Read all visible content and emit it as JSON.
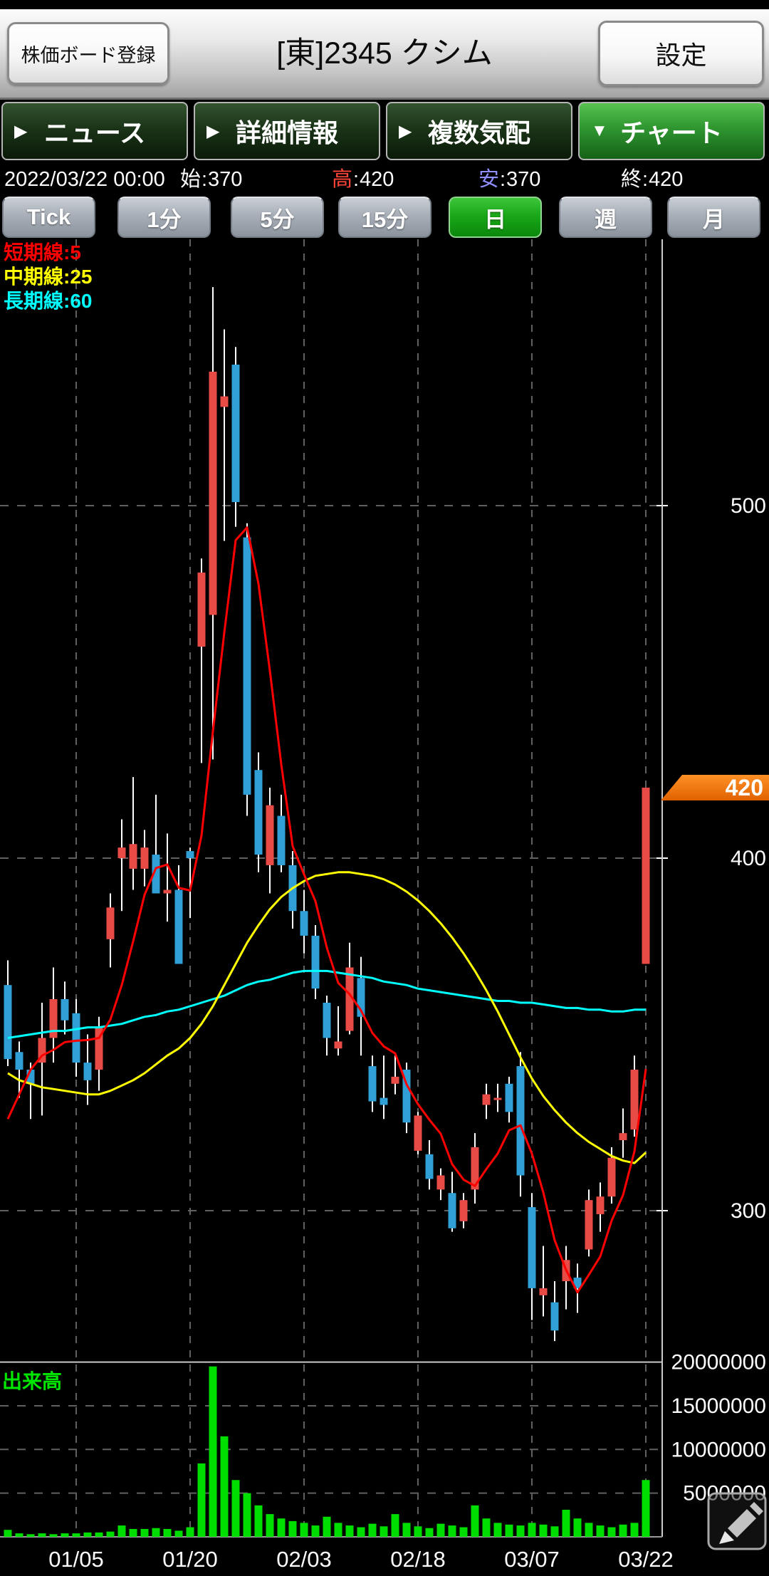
{
  "header": {
    "register_button": "株価ボード登録",
    "title": "[東]2345 クシム",
    "settings_button": "設定"
  },
  "tabs": [
    {
      "label": "ニュース",
      "arrow": "▶",
      "active": false
    },
    {
      "label": "詳細情報",
      "arrow": "▶",
      "active": false
    },
    {
      "label": "複数気配",
      "arrow": "▶",
      "active": false
    },
    {
      "label": "チャート",
      "arrow": "▼",
      "active": true
    }
  ],
  "info_bar": {
    "datetime": "2022/03/22 00:00",
    "open_label": "始",
    "open": "370",
    "high_label": "高",
    "high": "420",
    "low_label": "安",
    "low": "370",
    "close_label": "終",
    "close": "420"
  },
  "timeframes": {
    "options": [
      "Tick",
      "1分",
      "5分",
      "15分",
      "日",
      "週",
      "月"
    ],
    "selected": "日"
  },
  "legend": [
    {
      "label": "短期線:5",
      "color": "#ff0000"
    },
    {
      "label": "中期線:25",
      "color": "#ffff00"
    },
    {
      "label": "長期線:60",
      "color": "#00ffff"
    }
  ],
  "volume_label": "出来高",
  "current_price_tag": {
    "value": "420",
    "color_top": "#ff9126",
    "color_bottom": "#e06200"
  },
  "chart_data": {
    "type": "candlestick",
    "title": "[東]2345 クシム 日足",
    "x_ticks": [
      {
        "label": "01/05",
        "index": 6
      },
      {
        "label": "01/20",
        "index": 16
      },
      {
        "label": "02/03",
        "index": 26
      },
      {
        "label": "02/18",
        "index": 36
      },
      {
        "label": "03/07",
        "index": 46
      },
      {
        "label": "03/22",
        "index": 56
      }
    ],
    "price_axis": [
      500,
      400,
      300
    ],
    "volume_axis": [
      20000000,
      15000000,
      10000000,
      5000000
    ],
    "current_price": 420,
    "last_candle": {
      "open": 370,
      "high": 420,
      "low": 370,
      "close": 420
    },
    "candles": [
      [
        364,
        371,
        341,
        343
      ],
      [
        345,
        348,
        332,
        340
      ],
      [
        340,
        342,
        326,
        336
      ],
      [
        342,
        359,
        327,
        349
      ],
      [
        349,
        369,
        342,
        360
      ],
      [
        360,
        365,
        350,
        354
      ],
      [
        356,
        360,
        338,
        342
      ],
      [
        342,
        350,
        330,
        337
      ],
      [
        340,
        355,
        334,
        352
      ],
      [
        377,
        390,
        369,
        386
      ],
      [
        400,
        411,
        385,
        403
      ],
      [
        397,
        423,
        391,
        404
      ],
      [
        397,
        408,
        392,
        403
      ],
      [
        401,
        418,
        390,
        390
      ],
      [
        390,
        407,
        382,
        391
      ],
      [
        391,
        398,
        370,
        370
      ],
      [
        402,
        403,
        383,
        400
      ],
      [
        460,
        485,
        427,
        481
      ],
      [
        469,
        562,
        428,
        538
      ],
      [
        528,
        550,
        490,
        531
      ],
      [
        540,
        545,
        494,
        501
      ],
      [
        491,
        495,
        412,
        418
      ],
      [
        425,
        430,
        396,
        401
      ],
      [
        398,
        420,
        390,
        415
      ],
      [
        412,
        418,
        396,
        398
      ],
      [
        398,
        402,
        380,
        385
      ],
      [
        385,
        391,
        373,
        378
      ],
      [
        378,
        381,
        360,
        363
      ],
      [
        359,
        361,
        344,
        349
      ],
      [
        346,
        358,
        344,
        348
      ],
      [
        351,
        376,
        350,
        369
      ],
      [
        366,
        372,
        344,
        355
      ],
      [
        341,
        344,
        328,
        331
      ],
      [
        332,
        344,
        326,
        330
      ],
      [
        336,
        344,
        333,
        338
      ],
      [
        340,
        342,
        322,
        325
      ],
      [
        317,
        328,
        316,
        327
      ],
      [
        316,
        320,
        306,
        309
      ],
      [
        306,
        312,
        303,
        310
      ],
      [
        305,
        311,
        294,
        295
      ],
      [
        297,
        305,
        295,
        303
      ],
      [
        306,
        322,
        302,
        318
      ],
      [
        330,
        336,
        326,
        333
      ],
      [
        332,
        336,
        328,
        332
      ],
      [
        336,
        338,
        325,
        328
      ],
      [
        341,
        345,
        304,
        310
      ],
      [
        301,
        305,
        269,
        278
      ],
      [
        276,
        290,
        270,
        278
      ],
      [
        274,
        280,
        263,
        266
      ],
      [
        280,
        290,
        272,
        286
      ],
      [
        281,
        285,
        271,
        278
      ],
      [
        289,
        306,
        287,
        303
      ],
      [
        299,
        308,
        294,
        304
      ],
      [
        304,
        318,
        302,
        315
      ],
      [
        320,
        329,
        315,
        322
      ],
      [
        323,
        344,
        321,
        340
      ],
      [
        370,
        420,
        370,
        420
      ]
    ],
    "volumes_millions": [
      0.8,
      0.4,
      0.3,
      0.4,
      0.3,
      0.4,
      0.4,
      0.5,
      0.5,
      0.6,
      1.3,
      0.9,
      0.9,
      1.0,
      0.9,
      0.7,
      1.1,
      8.4,
      19.5,
      11.5,
      6.5,
      5.0,
      3.6,
      2.6,
      2.1,
      1.8,
      1.6,
      1.3,
      2.3,
      1.6,
      1.3,
      1.1,
      1.5,
      1.2,
      2.6,
      1.6,
      1.2,
      1.0,
      1.5,
      1.3,
      1.1,
      3.6,
      2.1,
      1.6,
      1.4,
      1.3,
      1.6,
      1.4,
      1.2,
      3.1,
      2.1,
      1.6,
      1.3,
      1.1,
      1.4,
      1.6,
      6.5
    ],
    "ma5": [
      326,
      333,
      340,
      344,
      345.6,
      347.8,
      348.2,
      348.4,
      349,
      354.2,
      364,
      376.4,
      389.6,
      397.2,
      398.2,
      391.6,
      390.8,
      406.4,
      436,
      464,
      490.2,
      493.8,
      477.8,
      453.2,
      426.6,
      403.4,
      395.4,
      387.8,
      374.6,
      364.6,
      361.4,
      356.8,
      350.4,
      346.6,
      344.6,
      335.8,
      330.2,
      325.8,
      321.8,
      313.2,
      308.8,
      307,
      311.8,
      316.2,
      322.8,
      324.2,
      316.2,
      305.2,
      291.6,
      283.2,
      276.8,
      281.8,
      287,
      297.2,
      304.4,
      316.8,
      340.2
    ],
    "ma25": [
      339,
      337,
      336,
      335,
      334.5,
      334,
      333.5,
      333,
      333,
      334,
      335.5,
      337,
      339,
      341.5,
      344,
      346,
      349,
      353,
      358,
      364,
      370,
      376,
      381,
      385.5,
      389,
      391.5,
      393.5,
      395,
      395.5,
      396,
      396,
      395.5,
      395,
      394,
      392.5,
      390.5,
      388,
      385,
      381.5,
      377.5,
      373,
      368,
      362.5,
      356.5,
      350,
      343.5,
      337.5,
      332.5,
      328.5,
      325,
      322,
      319.5,
      317.5,
      315.5,
      314.2,
      313.5,
      316.5
    ],
    "ma60": [
      349,
      349.5,
      350,
      350.5,
      351,
      351,
      351.5,
      352,
      352,
      352.5,
      353,
      354,
      355,
      355.5,
      356.5,
      357,
      358,
      359,
      360,
      361,
      362.5,
      364,
      365,
      365.5,
      366.5,
      367.5,
      368,
      368,
      368,
      367.5,
      367,
      366.5,
      366,
      365,
      364.5,
      364,
      363,
      362.5,
      362,
      361.5,
      361,
      360.5,
      360,
      359.5,
      359.5,
      359,
      359,
      358.5,
      358,
      357.5,
      357.5,
      357,
      357,
      356.5,
      356.5,
      357,
      357
    ],
    "colors": {
      "up_candle": "#e84b45",
      "down_candle": "#2f9fd6",
      "wick": "#ffffff",
      "volume_bar": "#00dd00",
      "ma5": "#ff0000",
      "ma25": "#ffff00",
      "ma60": "#00ffff",
      "grid": "#606060",
      "axis_text": "#ffffff"
    },
    "legend_position": "top-left",
    "grid": true
  }
}
